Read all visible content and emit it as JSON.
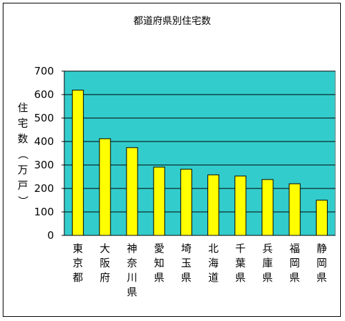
{
  "chart_data": {
    "type": "bar",
    "title": "都道府県別住宅数",
    "ylabel": "住宅数（万戸）",
    "xlabel": "",
    "categories": [
      "東京都",
      "大阪府",
      "神奈川県",
      "愛知県",
      "埼玉県",
      "北海道",
      "千葉県",
      "兵庫県",
      "福岡県",
      "静岡県"
    ],
    "values": [
      619,
      412,
      374,
      291,
      282,
      258,
      253,
      238,
      220,
      150
    ],
    "ylim": [
      0,
      700
    ],
    "yticks": [
      0,
      100,
      200,
      300,
      400,
      500,
      600,
      700
    ],
    "grid": true,
    "legend": "none",
    "colors": {
      "plot_background": "#33cccc",
      "bar_fill": "#ffff00",
      "bar_stroke": "#000000",
      "gridline": "#000000"
    }
  }
}
